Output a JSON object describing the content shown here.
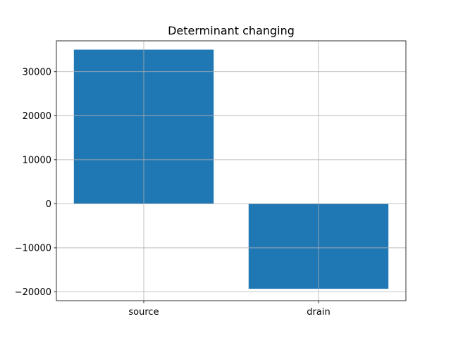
{
  "chart_data": {
    "type": "bar",
    "title": "Determinant changing",
    "xlabel": "",
    "ylabel": "",
    "categories": [
      "source",
      "drain"
    ],
    "values": [
      35000,
      -19300
    ],
    "ylim": [
      -22000,
      37000
    ],
    "yticks": [
      -20000,
      -10000,
      0,
      10000,
      20000,
      30000
    ],
    "bar_color": "#1f77b4",
    "grid": true,
    "legend": "none"
  }
}
